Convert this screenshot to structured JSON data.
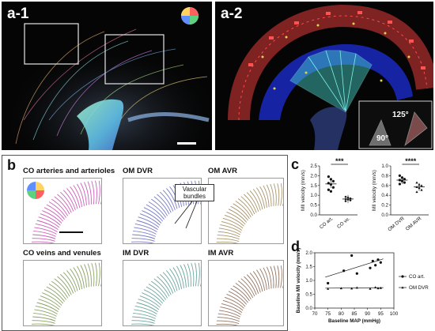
{
  "panels": {
    "a1": {
      "label": "a-1"
    },
    "a2": {
      "label": "a-2",
      "angle_large": "125°",
      "angle_small": "90°"
    },
    "b": {
      "label": "b",
      "thumbs": [
        {
          "title": "CO arteries and arterioles",
          "color": "#c84fb2"
        },
        {
          "title": "OM DVR",
          "color": "#6a6fc0"
        },
        {
          "title": "OM AVR",
          "color": "#a08b5a"
        },
        {
          "title": "CO veins and venules",
          "color": "#7f9b55"
        },
        {
          "title": "IM DVR",
          "color": "#5f9e97"
        },
        {
          "title": "IM AVR",
          "color": "#8b6a55"
        }
      ],
      "callout": "Vascular bundles"
    },
    "c": {
      "label": "c"
    },
    "d": {
      "label": "d"
    }
  },
  "chart_data": [
    {
      "type": "scatter",
      "panel": "c-left",
      "categories": [
        "CO art.",
        "CO ve."
      ],
      "ylabel": "MII velocity (mm/s)",
      "ylim": [
        0,
        2.5
      ],
      "yticks": [
        "0.0",
        "0.5",
        "1.0",
        "1.5",
        "2.0",
        "2.5"
      ],
      "series": [
        {
          "category": "CO art.",
          "values": [
            1.95,
            1.82,
            1.72,
            1.62,
            1.55,
            1.4,
            1.28,
            1.2
          ],
          "mean": 1.58,
          "marker": "circle"
        },
        {
          "category": "CO ve.",
          "values": [
            0.92,
            0.88,
            0.84,
            0.8,
            0.78,
            0.74,
            0.7
          ],
          "mean": 0.81,
          "marker": "diamond"
        }
      ],
      "significance": "***"
    },
    {
      "type": "scatter",
      "panel": "c-right",
      "categories": [
        "OM DVR",
        "OM AVR"
      ],
      "ylabel": "MII velocity (mm/s)",
      "ylim": [
        0,
        1.0
      ],
      "yticks": [
        "0.0",
        "0.2",
        "0.4",
        "0.6",
        "0.8",
        "1.0"
      ],
      "series": [
        {
          "category": "OM DVR",
          "values": [
            0.8,
            0.76,
            0.73,
            0.71,
            0.69,
            0.66,
            0.63
          ],
          "mean": 0.71,
          "marker": "circle"
        },
        {
          "category": "OM AVR",
          "values": [
            0.66,
            0.62,
            0.6,
            0.57,
            0.55,
            0.51,
            0.47
          ],
          "mean": 0.57,
          "marker": "triangle"
        }
      ],
      "significance": "****"
    },
    {
      "type": "scatter",
      "panel": "d",
      "xlabel": "Baseline MAP (mmHg)",
      "ylabel": "Baseline MII velocity (mm/s)",
      "xlim": [
        70,
        100
      ],
      "ylim": [
        0,
        2.0
      ],
      "xticks": [
        "70",
        "75",
        "80",
        "85",
        "90",
        "95",
        "100"
      ],
      "yticks": [
        "0.0",
        "0.5",
        "1.0",
        "1.5",
        "2.0"
      ],
      "legend": "right",
      "series": [
        {
          "name": "CO art.",
          "marker": "circle",
          "x": [
            75,
            81,
            84,
            86,
            91,
            92,
            93,
            94,
            95
          ],
          "y": [
            0.9,
            1.35,
            1.9,
            1.25,
            1.45,
            1.7,
            1.55,
            1.75,
            1.65
          ],
          "fit": [
            [
              74,
              1.12
            ],
            [
              96,
              1.78
            ]
          ]
        },
        {
          "name": "OM DVR",
          "marker": "triangle",
          "x": [
            75,
            80,
            84,
            86,
            91,
            93,
            94,
            95
          ],
          "y": [
            0.7,
            0.72,
            0.71,
            0.74,
            0.7,
            0.75,
            0.72,
            0.73
          ],
          "fit": [
            [
              74,
              0.72
            ],
            [
              96,
              0.74
            ]
          ]
        }
      ]
    }
  ]
}
